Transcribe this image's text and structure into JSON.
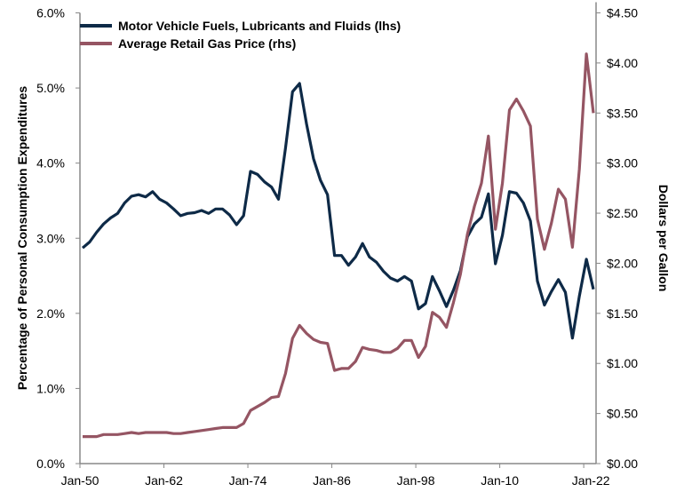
{
  "chart_data": {
    "type": "line",
    "title": "",
    "xlabel": "",
    "ylabel_left": "Percentage of Personal Consumption Expenditures",
    "ylabel_right": "Dollars per Gallon",
    "x_start_year": 1950,
    "x_end_year": 2023,
    "x_tick_labels": [
      "Jan-50",
      "Jan-62",
      "Jan-74",
      "Jan-86",
      "Jan-98",
      "Jan-10",
      "Jan-22"
    ],
    "x_tick_years": [
      1950,
      1962,
      1974,
      1986,
      1998,
      2010,
      2022
    ],
    "ylim_left": [
      0,
      6
    ],
    "left_tick_labels": [
      "0.0%",
      "1.0%",
      "2.0%",
      "3.0%",
      "4.0%",
      "5.0%",
      "6.0%"
    ],
    "ylim_right": [
      0,
      4.5
    ],
    "right_tick_labels": [
      "$0.00",
      "$0.50",
      "$1.00",
      "$1.50",
      "$2.00",
      "$2.50",
      "$3.00",
      "$3.50",
      "$4.00",
      "$4.50"
    ],
    "grid": false,
    "legend_position": "top-left",
    "series": [
      {
        "name": "Motor Vehicle Fuels, Lubricants and Fluids (lhs)",
        "axis": "left",
        "color": "#0e2a47",
        "values": [
          2.87,
          2.95,
          3.08,
          3.19,
          3.27,
          3.33,
          3.47,
          3.56,
          3.58,
          3.55,
          3.62,
          3.52,
          3.47,
          3.39,
          3.3,
          3.33,
          3.34,
          3.37,
          3.33,
          3.39,
          3.39,
          3.31,
          3.18,
          3.3,
          3.89,
          3.85,
          3.75,
          3.68,
          3.52,
          4.2,
          4.95,
          5.06,
          4.52,
          4.06,
          3.77,
          3.58,
          2.77,
          2.77,
          2.64,
          2.75,
          2.93,
          2.75,
          2.68,
          2.56,
          2.47,
          2.43,
          2.49,
          2.43,
          2.06,
          2.13,
          2.49,
          2.3,
          2.09,
          2.31,
          2.57,
          3.02,
          3.19,
          3.28,
          3.59,
          2.66,
          3.04,
          3.62,
          3.6,
          3.47,
          3.23,
          2.43,
          2.11,
          2.29,
          2.45,
          2.28,
          1.67,
          2.23,
          2.72,
          2.32
        ]
      },
      {
        "name": "Average Retail Gas Price (rhs)",
        "axis": "right",
        "color": "#955563",
        "values": [
          0.27,
          0.27,
          0.27,
          0.29,
          0.29,
          0.29,
          0.3,
          0.31,
          0.3,
          0.31,
          0.31,
          0.31,
          0.31,
          0.3,
          0.3,
          0.31,
          0.32,
          0.33,
          0.34,
          0.35,
          0.36,
          0.36,
          0.36,
          0.4,
          0.53,
          0.57,
          0.61,
          0.66,
          0.67,
          0.9,
          1.25,
          1.38,
          1.3,
          1.24,
          1.21,
          1.2,
          0.93,
          0.95,
          0.95,
          1.02,
          1.16,
          1.14,
          1.13,
          1.11,
          1.11,
          1.15,
          1.23,
          1.23,
          1.06,
          1.17,
          1.51,
          1.46,
          1.36,
          1.61,
          1.89,
          2.29,
          2.57,
          2.8,
          3.27,
          2.34,
          2.8,
          3.53,
          3.64,
          3.52,
          3.37,
          2.44,
          2.14,
          2.4,
          2.74,
          2.64,
          2.16,
          2.94,
          4.09,
          3.5
        ]
      }
    ]
  }
}
